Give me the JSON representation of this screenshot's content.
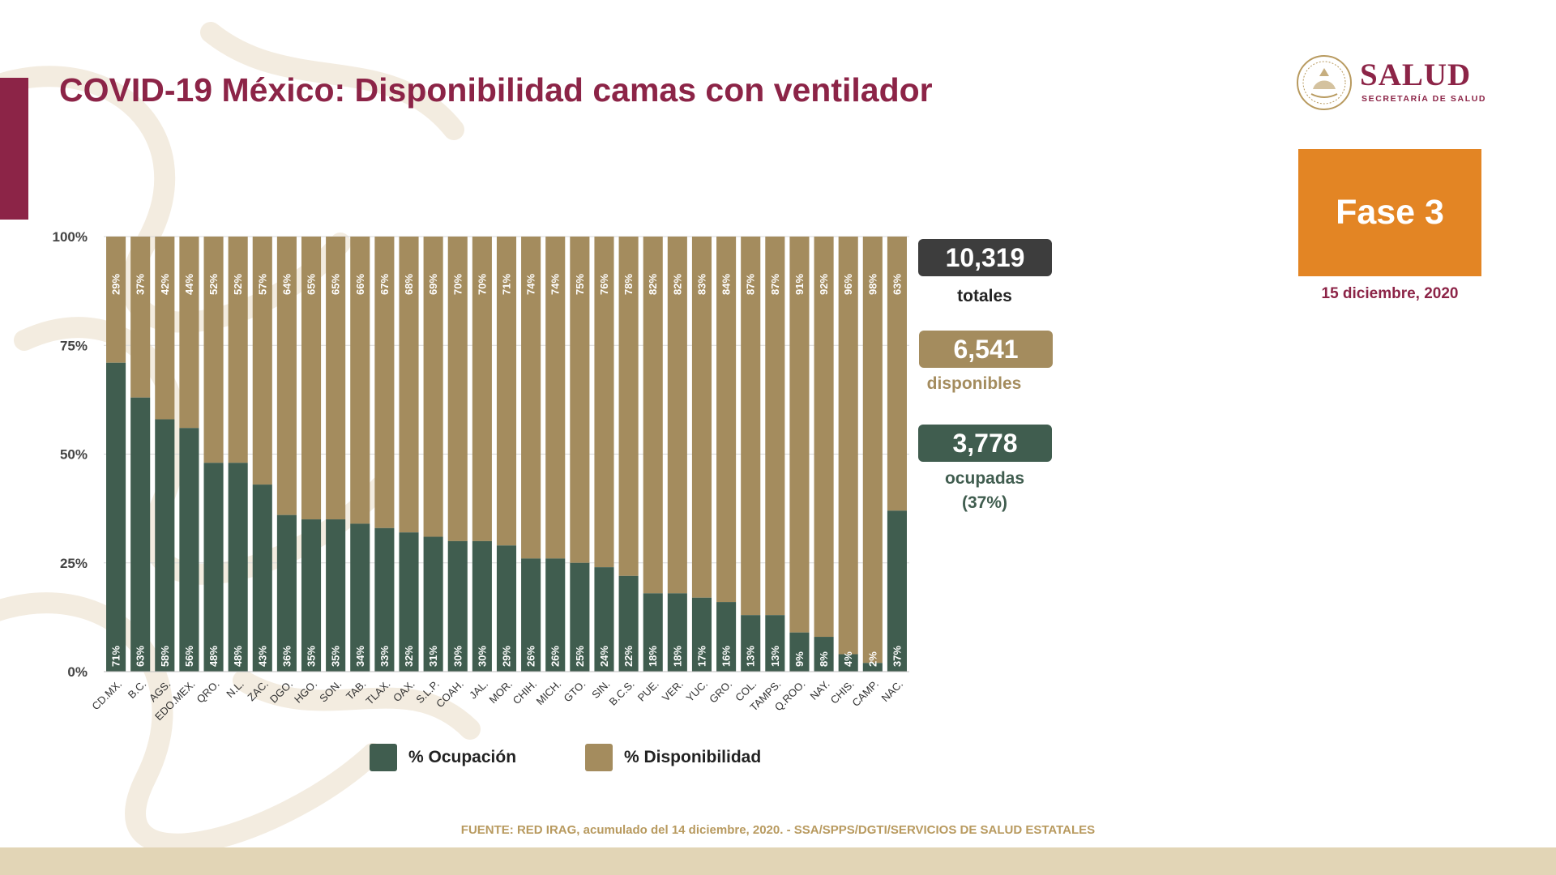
{
  "title": "COVID-19 México: Disponibilidad camas con ventilador",
  "logo": {
    "word": "SALUD",
    "subtitle": "SECRETARÍA DE SALUD",
    "seal_icon": "mexico-coat-of-arms-icon"
  },
  "phase": {
    "label": "Fase 3",
    "date": "15 diciembre, 2020"
  },
  "summary": {
    "total_value": "10,319",
    "total_label": "totales",
    "available_value": "6,541",
    "available_label": "disponibles",
    "occupied_value": "3,778",
    "occupied_label": "ocupadas",
    "occupied_pct": "(37%)"
  },
  "legend": {
    "occupied": "% Ocupación",
    "available": "% Disponibilidad"
  },
  "source": "FUENTE: RED IRAG, acumulado del 14 diciembre, 2020. -  SSA/SPPS/DGTI/SERVICIOS DE SALUD ESTATALES",
  "colors": {
    "occupied": "#405d4f",
    "available": "#a48c5e",
    "total_box": "#3d3d3d",
    "brand": "#8c2447",
    "phase": "#e38524"
  },
  "chart_data": {
    "type": "bar",
    "stacked": true,
    "percent": true,
    "title": "",
    "xlabel": "",
    "ylabel": "",
    "ylim": [
      0,
      100
    ],
    "yticks": [
      "0%",
      "25%",
      "50%",
      "75%",
      "100%"
    ],
    "categories": [
      "CD.MX.",
      "B.C.",
      "AGS.",
      "EDO.MEX.",
      "QRO.",
      "N.L.",
      "ZAC.",
      "DGO.",
      "HGO.",
      "SON.",
      "TAB.",
      "TLAX.",
      "OAX.",
      "S.L.P.",
      "COAH.",
      "JAL.",
      "MOR.",
      "CHIH.",
      "MICH.",
      "GTO.",
      "SIN.",
      "B.C.S.",
      "PUE.",
      "VER.",
      "YUC.",
      "GRO.",
      "COL.",
      "TAMPS.",
      "Q.ROO.",
      "NAY.",
      "CHIS.",
      "CAMP.",
      "NAC."
    ],
    "series": [
      {
        "name": "% Ocupación",
        "values": [
          71,
          63,
          58,
          56,
          48,
          48,
          43,
          36,
          35,
          35,
          34,
          33,
          32,
          31,
          30,
          30,
          29,
          26,
          26,
          25,
          24,
          22,
          18,
          18,
          17,
          16,
          13,
          13,
          9,
          8,
          4,
          2,
          37
        ]
      },
      {
        "name": "% Disponibilidad",
        "values": [
          29,
          37,
          42,
          44,
          52,
          52,
          57,
          64,
          65,
          65,
          66,
          67,
          68,
          69,
          70,
          70,
          71,
          74,
          74,
          75,
          76,
          78,
          82,
          82,
          83,
          84,
          87,
          87,
          91,
          92,
          96,
          98,
          63
        ]
      }
    ],
    "legend": "bottom"
  }
}
